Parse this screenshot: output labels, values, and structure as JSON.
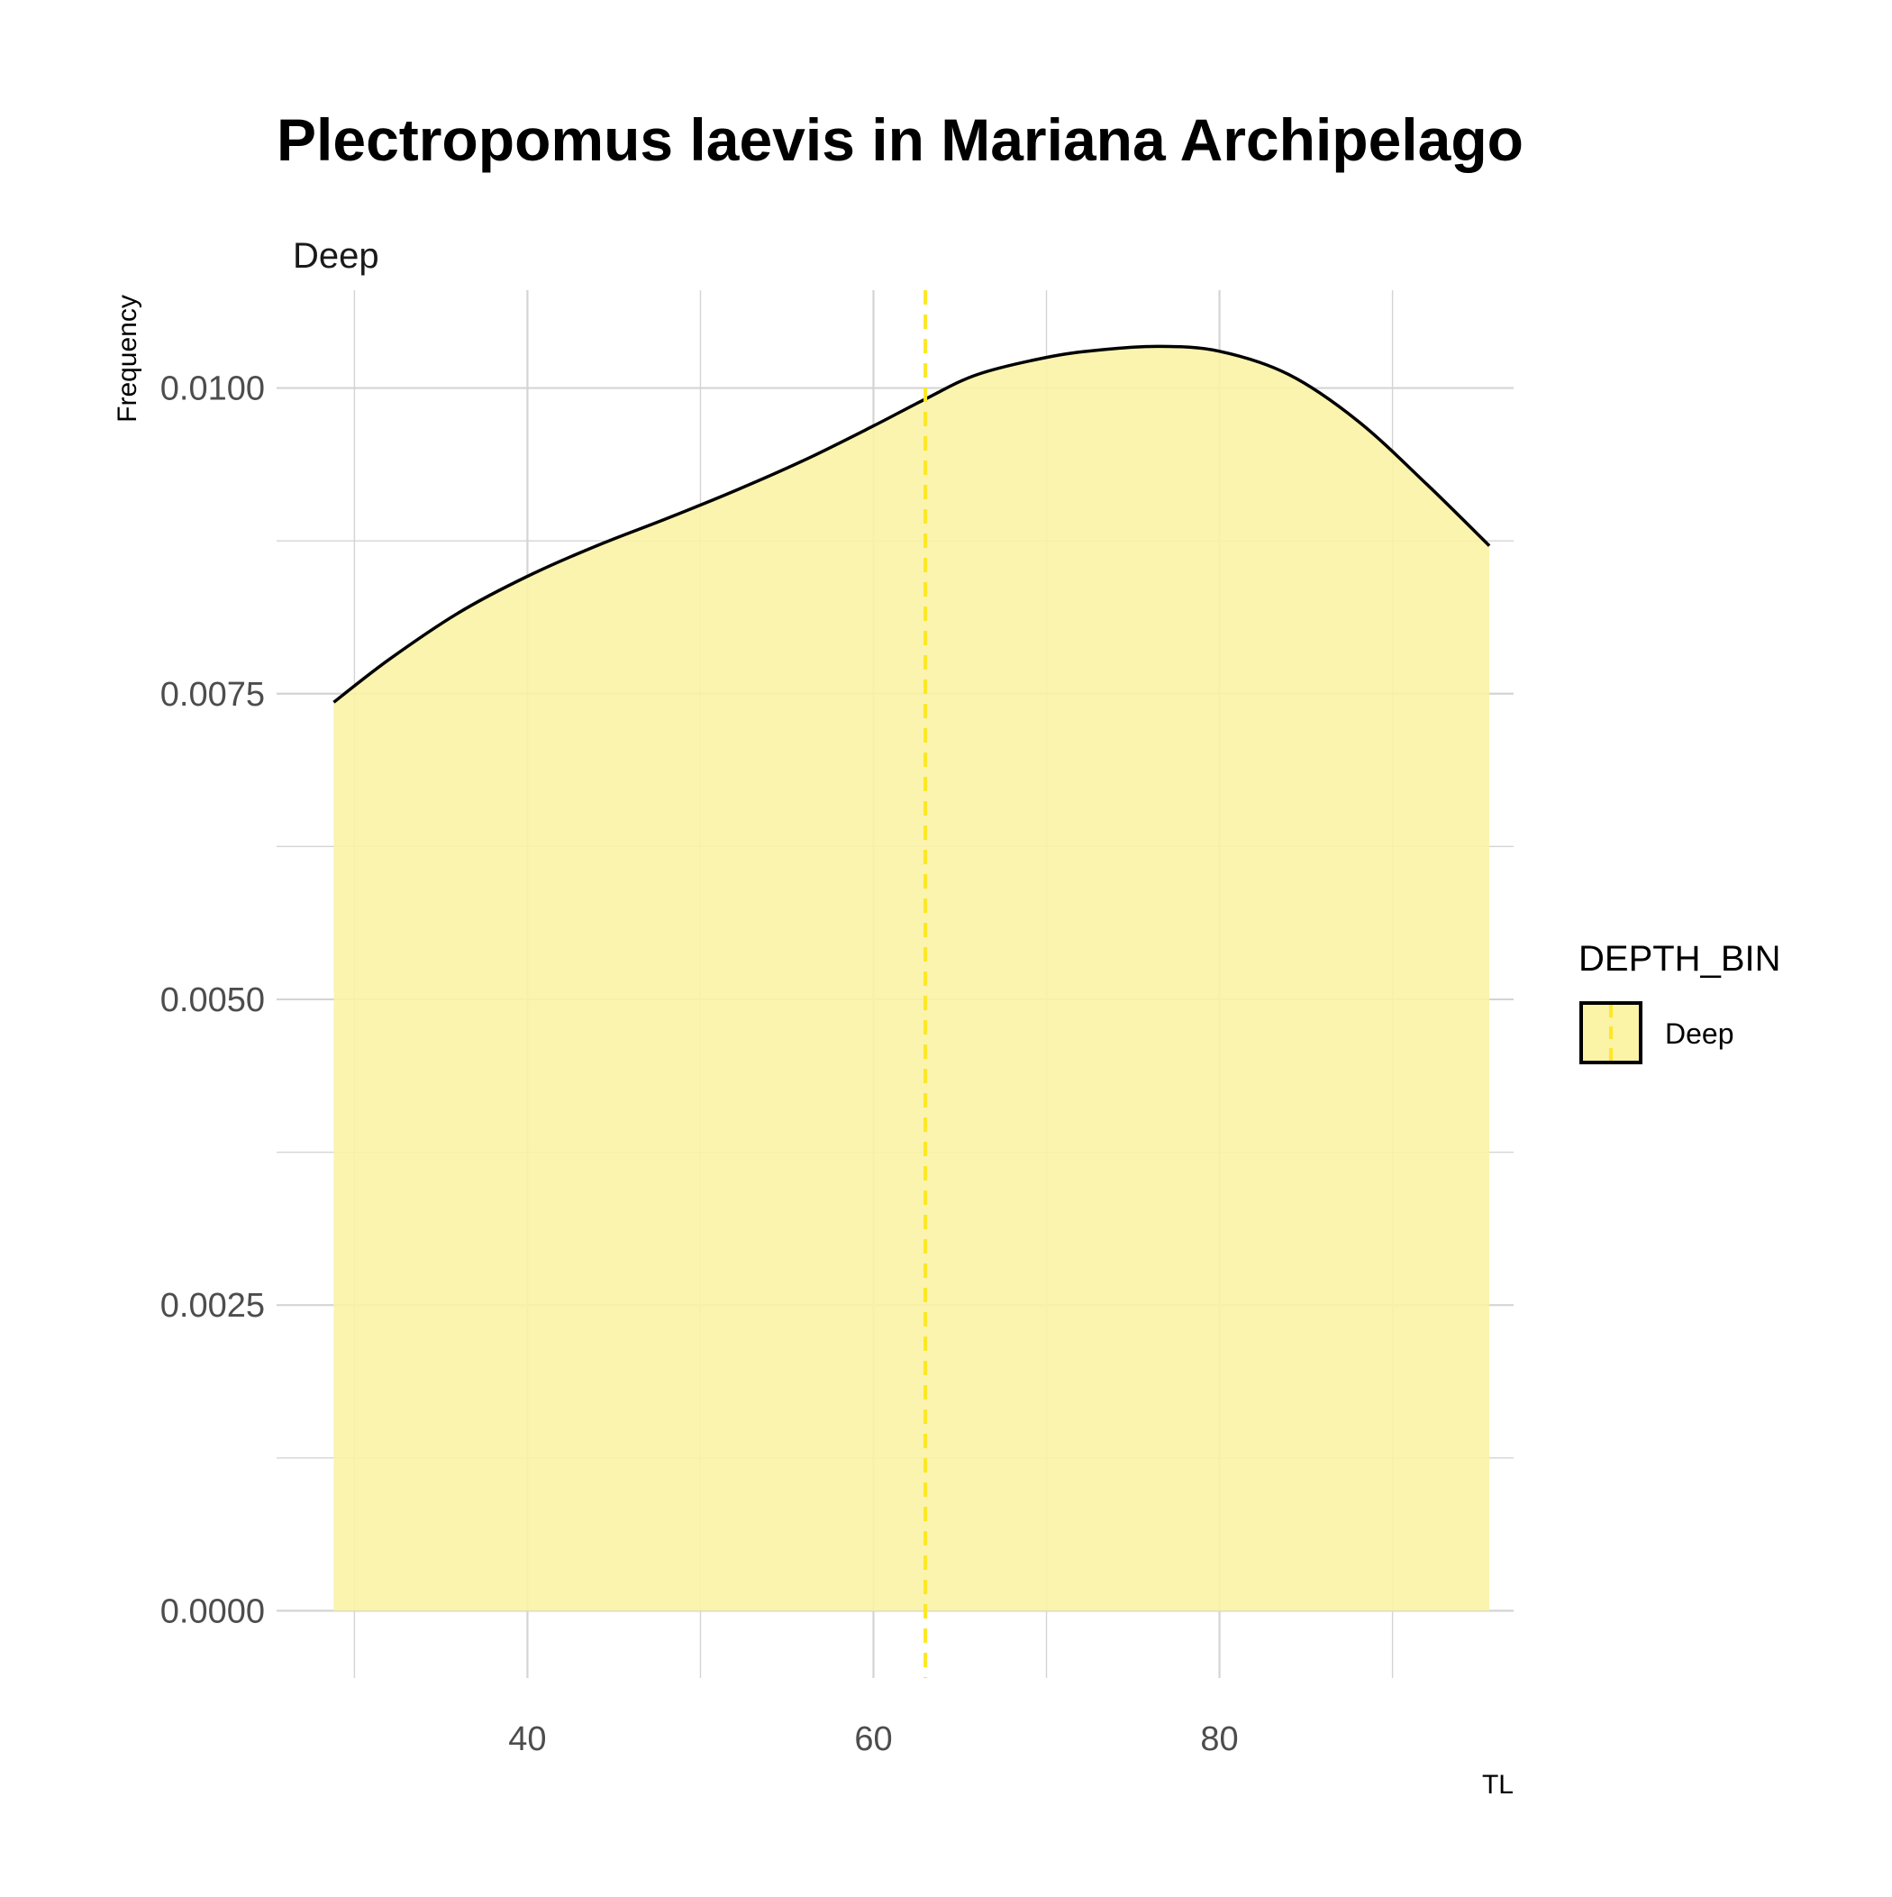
{
  "chart_data": {
    "type": "area",
    "title": "Plectropomus laevis in Mariana Archipelago",
    "facet_label": "Deep",
    "xlabel": "TL",
    "ylabel": "Frequency",
    "xlim": [
      25.5,
      97
    ],
    "ylim": [
      -0.00055,
      0.0108
    ],
    "x_ticks": [
      40,
      60,
      80
    ],
    "x_minor_ticks": [
      30,
      50,
      70,
      90
    ],
    "y_ticks": [
      0.0,
      0.0025,
      0.005,
      0.0075,
      0.01
    ],
    "y_tick_labels": [
      "0.0000",
      "0.0025",
      "0.0050",
      "0.0075",
      "0.0100"
    ],
    "y_minor_ticks": [
      0.00125,
      0.00375,
      0.00625,
      0.00875
    ],
    "grid": true,
    "legend": {
      "title": "DEPTH_BIN",
      "position": "right",
      "entries": [
        "Deep"
      ]
    },
    "series": [
      {
        "name": "Deep",
        "x": [
          28.8,
          32,
          36,
          40,
          44,
          48,
          52,
          56,
          60,
          63,
          66,
          70,
          73,
          76.5,
          80,
          84,
          88,
          92,
          95.6
        ],
        "y": [
          0.00743,
          0.00778,
          0.00816,
          0.00846,
          0.00871,
          0.00893,
          0.00916,
          0.00941,
          0.00969,
          0.00991,
          0.01011,
          0.01025,
          0.01031,
          0.01034,
          0.0103,
          0.01011,
          0.00973,
          0.00921,
          0.00871
        ]
      }
    ],
    "mean_line": {
      "x": 63,
      "style": "dashed"
    },
    "colors": {
      "fill": "#fbf3a5",
      "line": "#000000",
      "mean_line": "#fde725",
      "grid": "#d4d4d4"
    }
  }
}
